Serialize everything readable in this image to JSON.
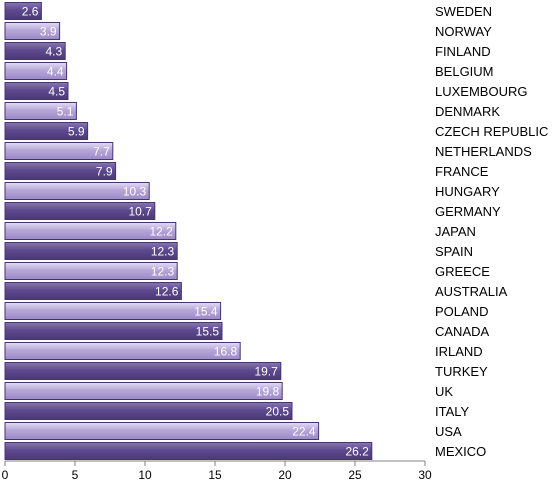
{
  "chart_data": {
    "type": "bar",
    "orientation": "horizontal",
    "categories": [
      "SWEDEN",
      "NORWAY",
      "FINLAND",
      "BELGIUM",
      "LUXEMBOURG",
      "DENMARK",
      "CZECH REPUBLIC",
      "NETHERLANDS",
      "FRANCE",
      "HUNGARY",
      "GERMANY",
      "JAPAN",
      "SPAIN",
      "GREECE",
      "AUSTRALIA",
      "POLAND",
      "CANADA",
      "IRLAND",
      "TURKEY",
      "UK",
      "ITALY",
      "USA",
      "MEXICO"
    ],
    "values": [
      2.6,
      3.9,
      4.3,
      4.4,
      4.5,
      5.1,
      5.9,
      7.7,
      7.9,
      10.3,
      10.7,
      12.2,
      12.3,
      12.3,
      12.6,
      15.4,
      15.5,
      16.8,
      19.7,
      19.8,
      20.5,
      22.4,
      26.2
    ],
    "value_labels": [
      "2.6",
      "3.9",
      "4.3",
      "4.4",
      "4.5",
      "5.1",
      "5.9",
      "7.7",
      "7.9",
      "10.3",
      "10.7",
      "12.2",
      "12.3",
      "12.3",
      "12.6",
      "15.4",
      "15.5",
      "16.8",
      "19.7",
      "19.8",
      "20.5",
      "22.4",
      "26.2"
    ],
    "xlim": [
      0,
      30
    ],
    "xticks": [
      0,
      5,
      10,
      15,
      20,
      25,
      30
    ],
    "grid": false,
    "legend": "none",
    "colors": {
      "dark": "#5e4a8e",
      "dark_top": "#8776b6",
      "light": "#b6a6d9",
      "light_top": "#e4dcf4",
      "border": "#463570"
    }
  }
}
